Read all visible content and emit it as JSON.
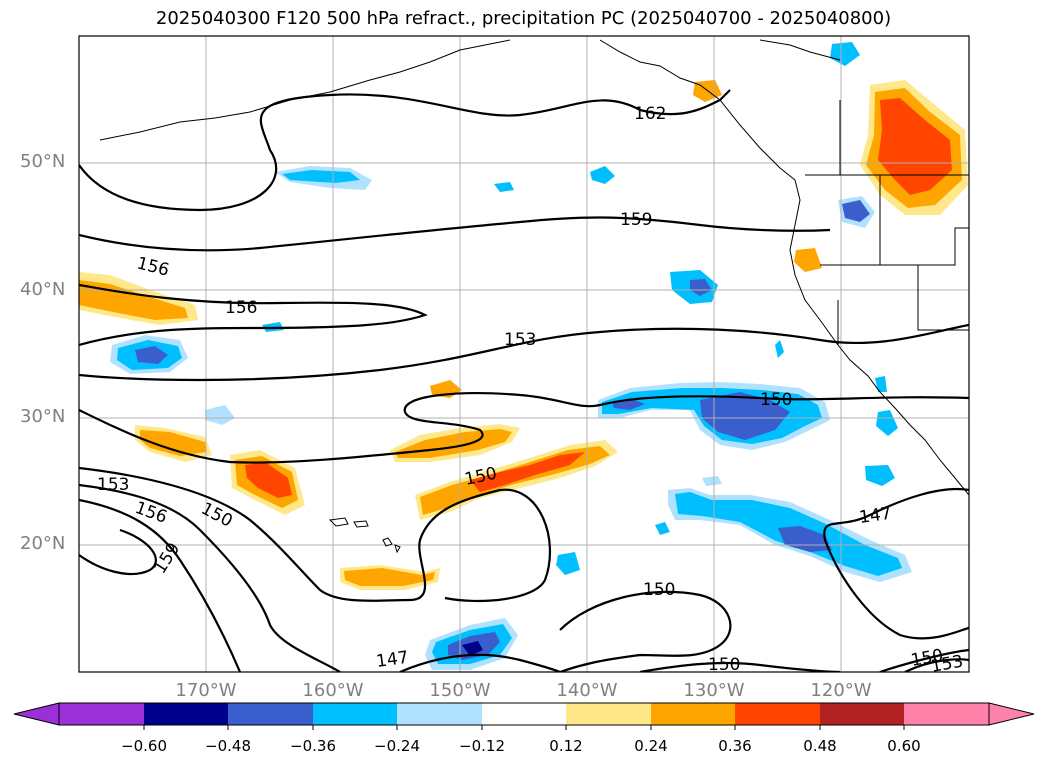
{
  "title": "2025040300 F120 500 hPa refract., precipitation PC (2025040700 - 2025040800)",
  "lat_ticks": [
    "50°N",
    "40°N",
    "30°N",
    "20°N"
  ],
  "lon_ticks": [
    "170°W",
    "160°W",
    "150°W",
    "140°W",
    "130°W",
    "120°W"
  ],
  "contour_labels": [
    "162",
    "159",
    "156",
    "156",
    "153",
    "150",
    "153",
    "156",
    "150",
    "159",
    "150",
    "150",
    "147",
    "147",
    "150",
    "150",
    "153"
  ],
  "colorbar": {
    "ticks": [
      "−0.60",
      "−0.48",
      "−0.36",
      "−0.24",
      "−0.12",
      "0.12",
      "0.24",
      "0.36",
      "0.48",
      "0.60"
    ],
    "colors": [
      "#9b30d9",
      "#00008b",
      "#3a5fcd",
      "#00bfff",
      "#b0e2ff",
      "#ffffff",
      "#ffe88a",
      "#ffa500",
      "#ff4500",
      "#b22222",
      "#ff82ab"
    ]
  }
}
